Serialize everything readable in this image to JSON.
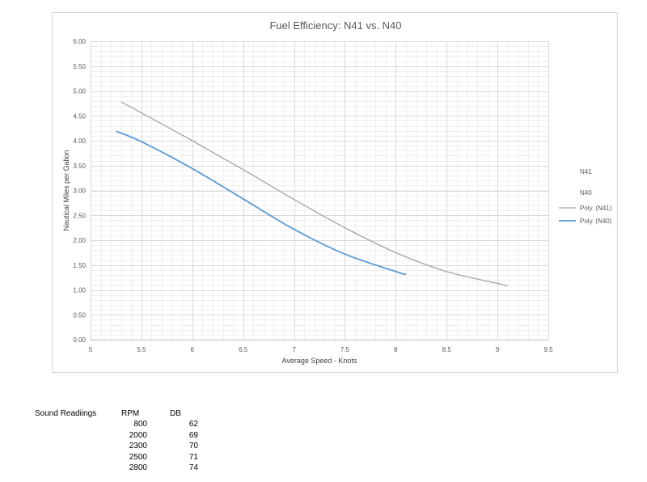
{
  "chart_data": {
    "type": "line",
    "title": "Fuel Efficiency: N41 vs. N40",
    "xlabel": "Average Speed - Knots",
    "ylabel": "Nautical Miles per Gallon",
    "xlim": [
      5,
      9.5
    ],
    "ylim": [
      0,
      6
    ],
    "x_ticks": [
      "5",
      "5.5",
      "6",
      "6.5",
      "7",
      "7.5",
      "8",
      "8.5",
      "9",
      "9.5"
    ],
    "y_ticks": [
      "0.00",
      "0.50",
      "1.00",
      "1.50",
      "2.00",
      "2.50",
      "3.00",
      "3.50",
      "4.00",
      "4.50",
      "5.00",
      "5.50",
      "6.00"
    ],
    "grid": true,
    "legend_position": "right",
    "legend": [
      "N41",
      "N40",
      "Poly. (N41)",
      "Poly. (N40)"
    ],
    "series": [
      {
        "name": "Poly. (N41)",
        "color": "#a5a5a5",
        "x": [
          5.3,
          5.5,
          6.0,
          6.5,
          7.0,
          7.5,
          8.0,
          8.5,
          9.0,
          9.1
        ],
        "y": [
          4.78,
          4.56,
          4.0,
          3.42,
          2.82,
          2.25,
          1.75,
          1.37,
          1.13,
          1.08
        ]
      },
      {
        "name": "Poly. (N40)",
        "color": "#5b9bd5",
        "x": [
          5.25,
          5.5,
          6.0,
          6.5,
          7.0,
          7.5,
          8.0,
          8.1
        ],
        "y": [
          4.19,
          3.98,
          3.44,
          2.83,
          2.22,
          1.72,
          1.37,
          1.31
        ]
      }
    ]
  },
  "sound_readings": {
    "title": "Sound Readiings",
    "headers": [
      "RPM",
      "DB"
    ],
    "rows": [
      [
        "800",
        "62"
      ],
      [
        "2000",
        "69"
      ],
      [
        "2300",
        "70"
      ],
      [
        "2500",
        "71"
      ],
      [
        "2800",
        "74"
      ]
    ]
  }
}
